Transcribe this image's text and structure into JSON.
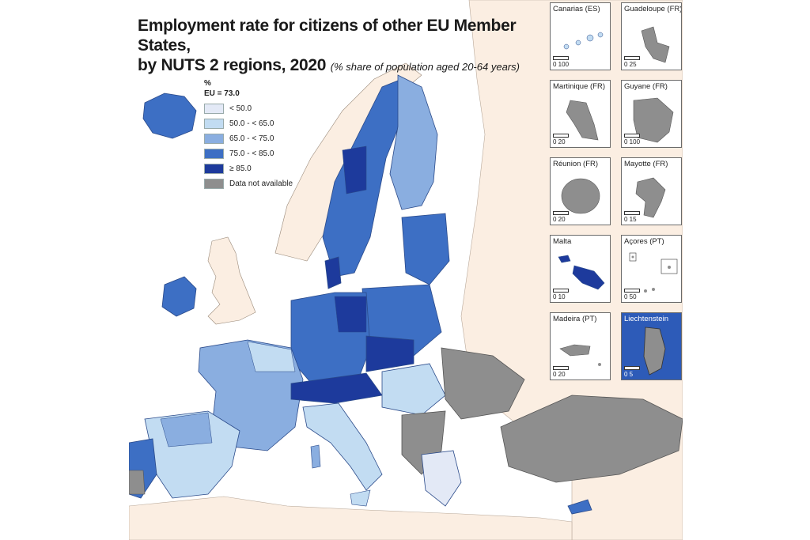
{
  "title": {
    "line1": "Employment rate for citizens of other EU Member States,",
    "line2": "by NUTS 2 regions, 2020",
    "subtitle": "(% share of population aged 20-64 years)"
  },
  "legend": {
    "unit": "%",
    "eu_average": "EU = 73.0",
    "classes": [
      {
        "label": "< 50.0",
        "color": "#e3e9f6"
      },
      {
        "label": "50.0 - < 65.0",
        "color": "#c2dcf2"
      },
      {
        "label": "65.0 - < 75.0",
        "color": "#8aaee0"
      },
      {
        "label": "75.0 - < 85.0",
        "color": "#3d6fc4"
      },
      {
        "label": "≥ 85.0",
        "color": "#1d3a9c"
      },
      {
        "label": "Data not available",
        "color": "#8e8e8e"
      }
    ]
  },
  "colors": {
    "sea": "#ffffff",
    "non_eu_land": "#fbeee2",
    "no_data": "#8e8e8e",
    "border": "#4a4a4a"
  },
  "insets": [
    {
      "name": "Canarias (ES)",
      "scale_label": "0  100"
    },
    {
      "name": "Guadeloupe (FR)",
      "scale_label": "0    25"
    },
    {
      "name": "Martinique (FR)",
      "scale_label": "0    20"
    },
    {
      "name": "Guyane (FR)",
      "scale_label": "0  100"
    },
    {
      "name": "Réunion (FR)",
      "scale_label": "0    20"
    },
    {
      "name": "Mayotte (FR)",
      "scale_label": "0    15"
    },
    {
      "name": "Malta",
      "scale_label": "0    10"
    },
    {
      "name": "Açores (PT)",
      "scale_label": "0    50"
    },
    {
      "name": "Madeira (PT)",
      "scale_label": "0    20"
    },
    {
      "name": "Liechtenstein",
      "scale_label": "0    5"
    }
  ]
}
